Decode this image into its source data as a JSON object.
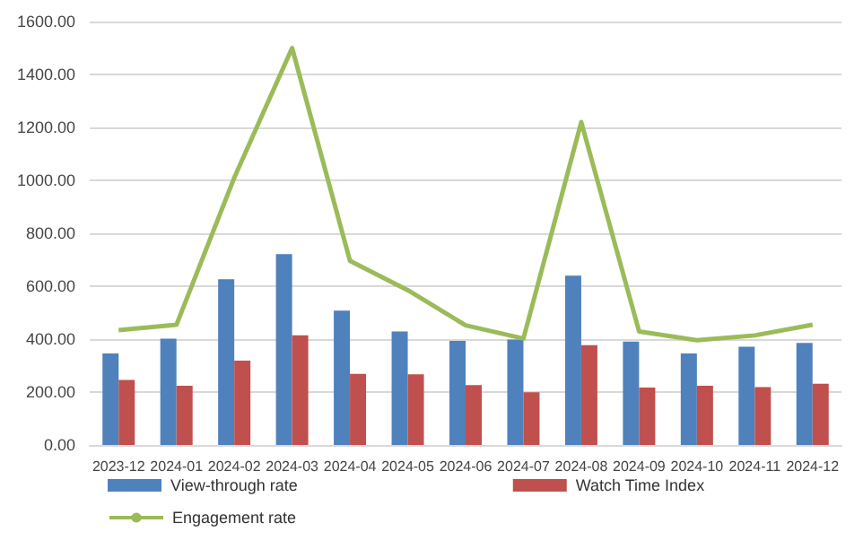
{
  "chart_data": {
    "type": "bar",
    "categories": [
      "2023-12",
      "2024-01",
      "2024-02",
      "2024-03",
      "2024-04",
      "2024-05",
      "2024-06",
      "2024-07",
      "2024-08",
      "2024-09",
      "2024-10",
      "2024-11",
      "2024-12"
    ],
    "series": [
      {
        "name": "View-through rate",
        "color": "#4f81bd",
        "values": [
          346,
          402,
          626,
          721,
          508,
          429,
          393,
          398,
          640,
          391,
          346,
          371,
          386
        ]
      },
      {
        "name": "Watch Time Index",
        "color": "#c0504d",
        "values": [
          246,
          224,
          319,
          414,
          269,
          267,
          226,
          199,
          377,
          217,
          224,
          219,
          231
        ]
      },
      {
        "name": "Engagement rate",
        "type": "line",
        "color": "#9bbb59",
        "marker": "none",
        "values": [
          434,
          454,
          1010,
          1500,
          696,
          585,
          452,
          402,
          1220,
          429,
          396,
          414,
          454
        ]
      }
    ],
    "ylim": [
      0,
      1600
    ],
    "yticks": [
      {
        "value": 0,
        "label": "0.00"
      },
      {
        "value": 200,
        "label": "200.00"
      },
      {
        "value": 400,
        "label": "400.00"
      },
      {
        "value": 600,
        "label": "600.00"
      },
      {
        "value": 800,
        "label": "800.00"
      },
      {
        "value": 1000,
        "label": "1000.00"
      },
      {
        "value": 1200,
        "label": "1200.00"
      },
      {
        "value": 1400,
        "label": "1400.00"
      },
      {
        "value": 1600,
        "label": "1600.00"
      }
    ],
    "grid": "y",
    "legend": "bottom"
  }
}
